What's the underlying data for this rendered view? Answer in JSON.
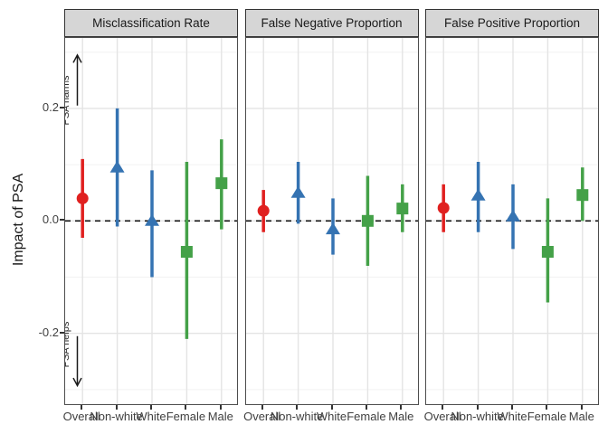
{
  "chart_data": {
    "type": "scatter",
    "title": "",
    "ylabel": "Impact of PSA",
    "xlabel": "",
    "legend_position": "none",
    "categories": [
      "Overall",
      "Non-white",
      "White",
      "Female",
      "Male"
    ],
    "ylim": [
      -0.33,
      0.325
    ],
    "y_ticks": [
      {
        "label": "0.2",
        "value": 0.2
      },
      {
        "label": "0.0",
        "value": 0.0
      },
      {
        "label": "-0.2",
        "value": -0.2
      }
    ],
    "y_major_gridlines": [
      0.2,
      0.0,
      -0.2
    ],
    "y_minor_gridlines": [
      0.3,
      0.1,
      -0.1,
      -0.3
    ],
    "zero_reference_line": "dashed-black",
    "markers": [
      {
        "category": "Overall",
        "shape": "circle",
        "color": "#e0201f"
      },
      {
        "category": "Non-white",
        "shape": "triangle",
        "color": "#3573b2"
      },
      {
        "category": "White",
        "shape": "triangle",
        "color": "#3573b2"
      },
      {
        "category": "Female",
        "shape": "square",
        "color": "#44a148"
      },
      {
        "category": "Male",
        "shape": "square",
        "color": "#44a148"
      }
    ],
    "panels": [
      {
        "label": "Misclassification Rate",
        "series": [
          {
            "category": "Overall",
            "estimate": 0.04,
            "lower": -0.03,
            "upper": 0.11
          },
          {
            "category": "Non-white",
            "estimate": 0.095,
            "lower": -0.01,
            "upper": 0.2
          },
          {
            "category": "White",
            "estimate": 0.0,
            "lower": -0.1,
            "upper": 0.09
          },
          {
            "category": "Female",
            "estimate": -0.055,
            "lower": -0.21,
            "upper": 0.105
          },
          {
            "category": "Male",
            "estimate": 0.067,
            "lower": -0.015,
            "upper": 0.145
          }
        ]
      },
      {
        "label": "False Negative Proportion",
        "series": [
          {
            "category": "Overall",
            "estimate": 0.018,
            "lower": -0.02,
            "upper": 0.055
          },
          {
            "category": "Non-white",
            "estimate": 0.05,
            "lower": -0.005,
            "upper": 0.105
          },
          {
            "category": "White",
            "estimate": -0.015,
            "lower": -0.06,
            "upper": 0.04
          },
          {
            "category": "Female",
            "estimate": 0.0,
            "lower": -0.08,
            "upper": 0.08
          },
          {
            "category": "Male",
            "estimate": 0.022,
            "lower": -0.02,
            "upper": 0.065
          }
        ]
      },
      {
        "label": "False Positive Proportion",
        "series": [
          {
            "category": "Overall",
            "estimate": 0.023,
            "lower": -0.02,
            "upper": 0.065
          },
          {
            "category": "Non-white",
            "estimate": 0.045,
            "lower": -0.02,
            "upper": 0.105
          },
          {
            "category": "White",
            "estimate": 0.008,
            "lower": -0.05,
            "upper": 0.065
          },
          {
            "category": "Female",
            "estimate": -0.055,
            "lower": -0.145,
            "upper": 0.04
          },
          {
            "category": "Male",
            "estimate": 0.046,
            "lower": 0.0,
            "upper": 0.095
          }
        ]
      }
    ],
    "annotations": [
      {
        "text": "PSA harms",
        "arrow": "up",
        "text_center_y": 0.215,
        "arrow_from": 0.205,
        "arrow_to": 0.295
      },
      {
        "text": "PSA helps",
        "arrow": "down",
        "text_center_y": -0.22,
        "arrow_from": -0.205,
        "arrow_to": -0.293
      }
    ]
  },
  "colors": {
    "strip_bg": "#d6d6d6",
    "strip_border": "#333333",
    "panel_border": "#4d4d4d",
    "grid_major": "#e4e4e4",
    "grid_minor": "#f2f2f2",
    "zero_line": "#111111",
    "axis_text": "#404040",
    "red": "#e0201f",
    "blue": "#3573b2",
    "green": "#44a148"
  }
}
